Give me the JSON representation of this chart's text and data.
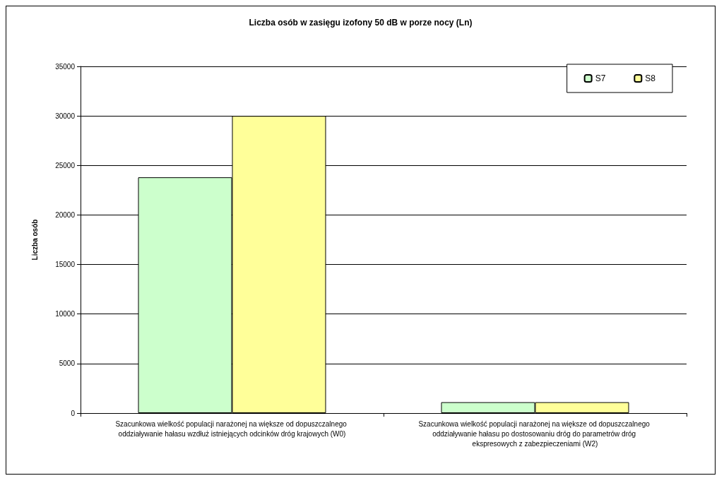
{
  "chart_data": {
    "type": "bar",
    "title": "Liczba osób w zasięgu izofony 50 dB w porze nocy (Ln)",
    "ylabel": "Liczba osób",
    "categories": [
      "Szacunkowa wielkość populacji narażonej na większe od dopuszczalnego oddziaływanie hałasu wzdłuż istniejących odcinków dróg krajowych (W0)",
      "Szacunkowa wielkość populacji narażonej na większe od dopuszczalnego oddziaływanie hałasu po dostosowaniu dróg do parametrów dróg ekspresowych z zabezpieczeniami (W2)"
    ],
    "series": [
      {
        "name": "S7",
        "color": "#ccffcc",
        "values": [
          23800,
          1100
        ]
      },
      {
        "name": "S8",
        "color": "#ffff99",
        "values": [
          30000,
          1100
        ]
      }
    ],
    "ylim": [
      0,
      35000
    ],
    "yticks": [
      0,
      5000,
      10000,
      15000,
      20000,
      25000,
      30000,
      35000
    ],
    "grid": "y",
    "legend": "top right"
  }
}
